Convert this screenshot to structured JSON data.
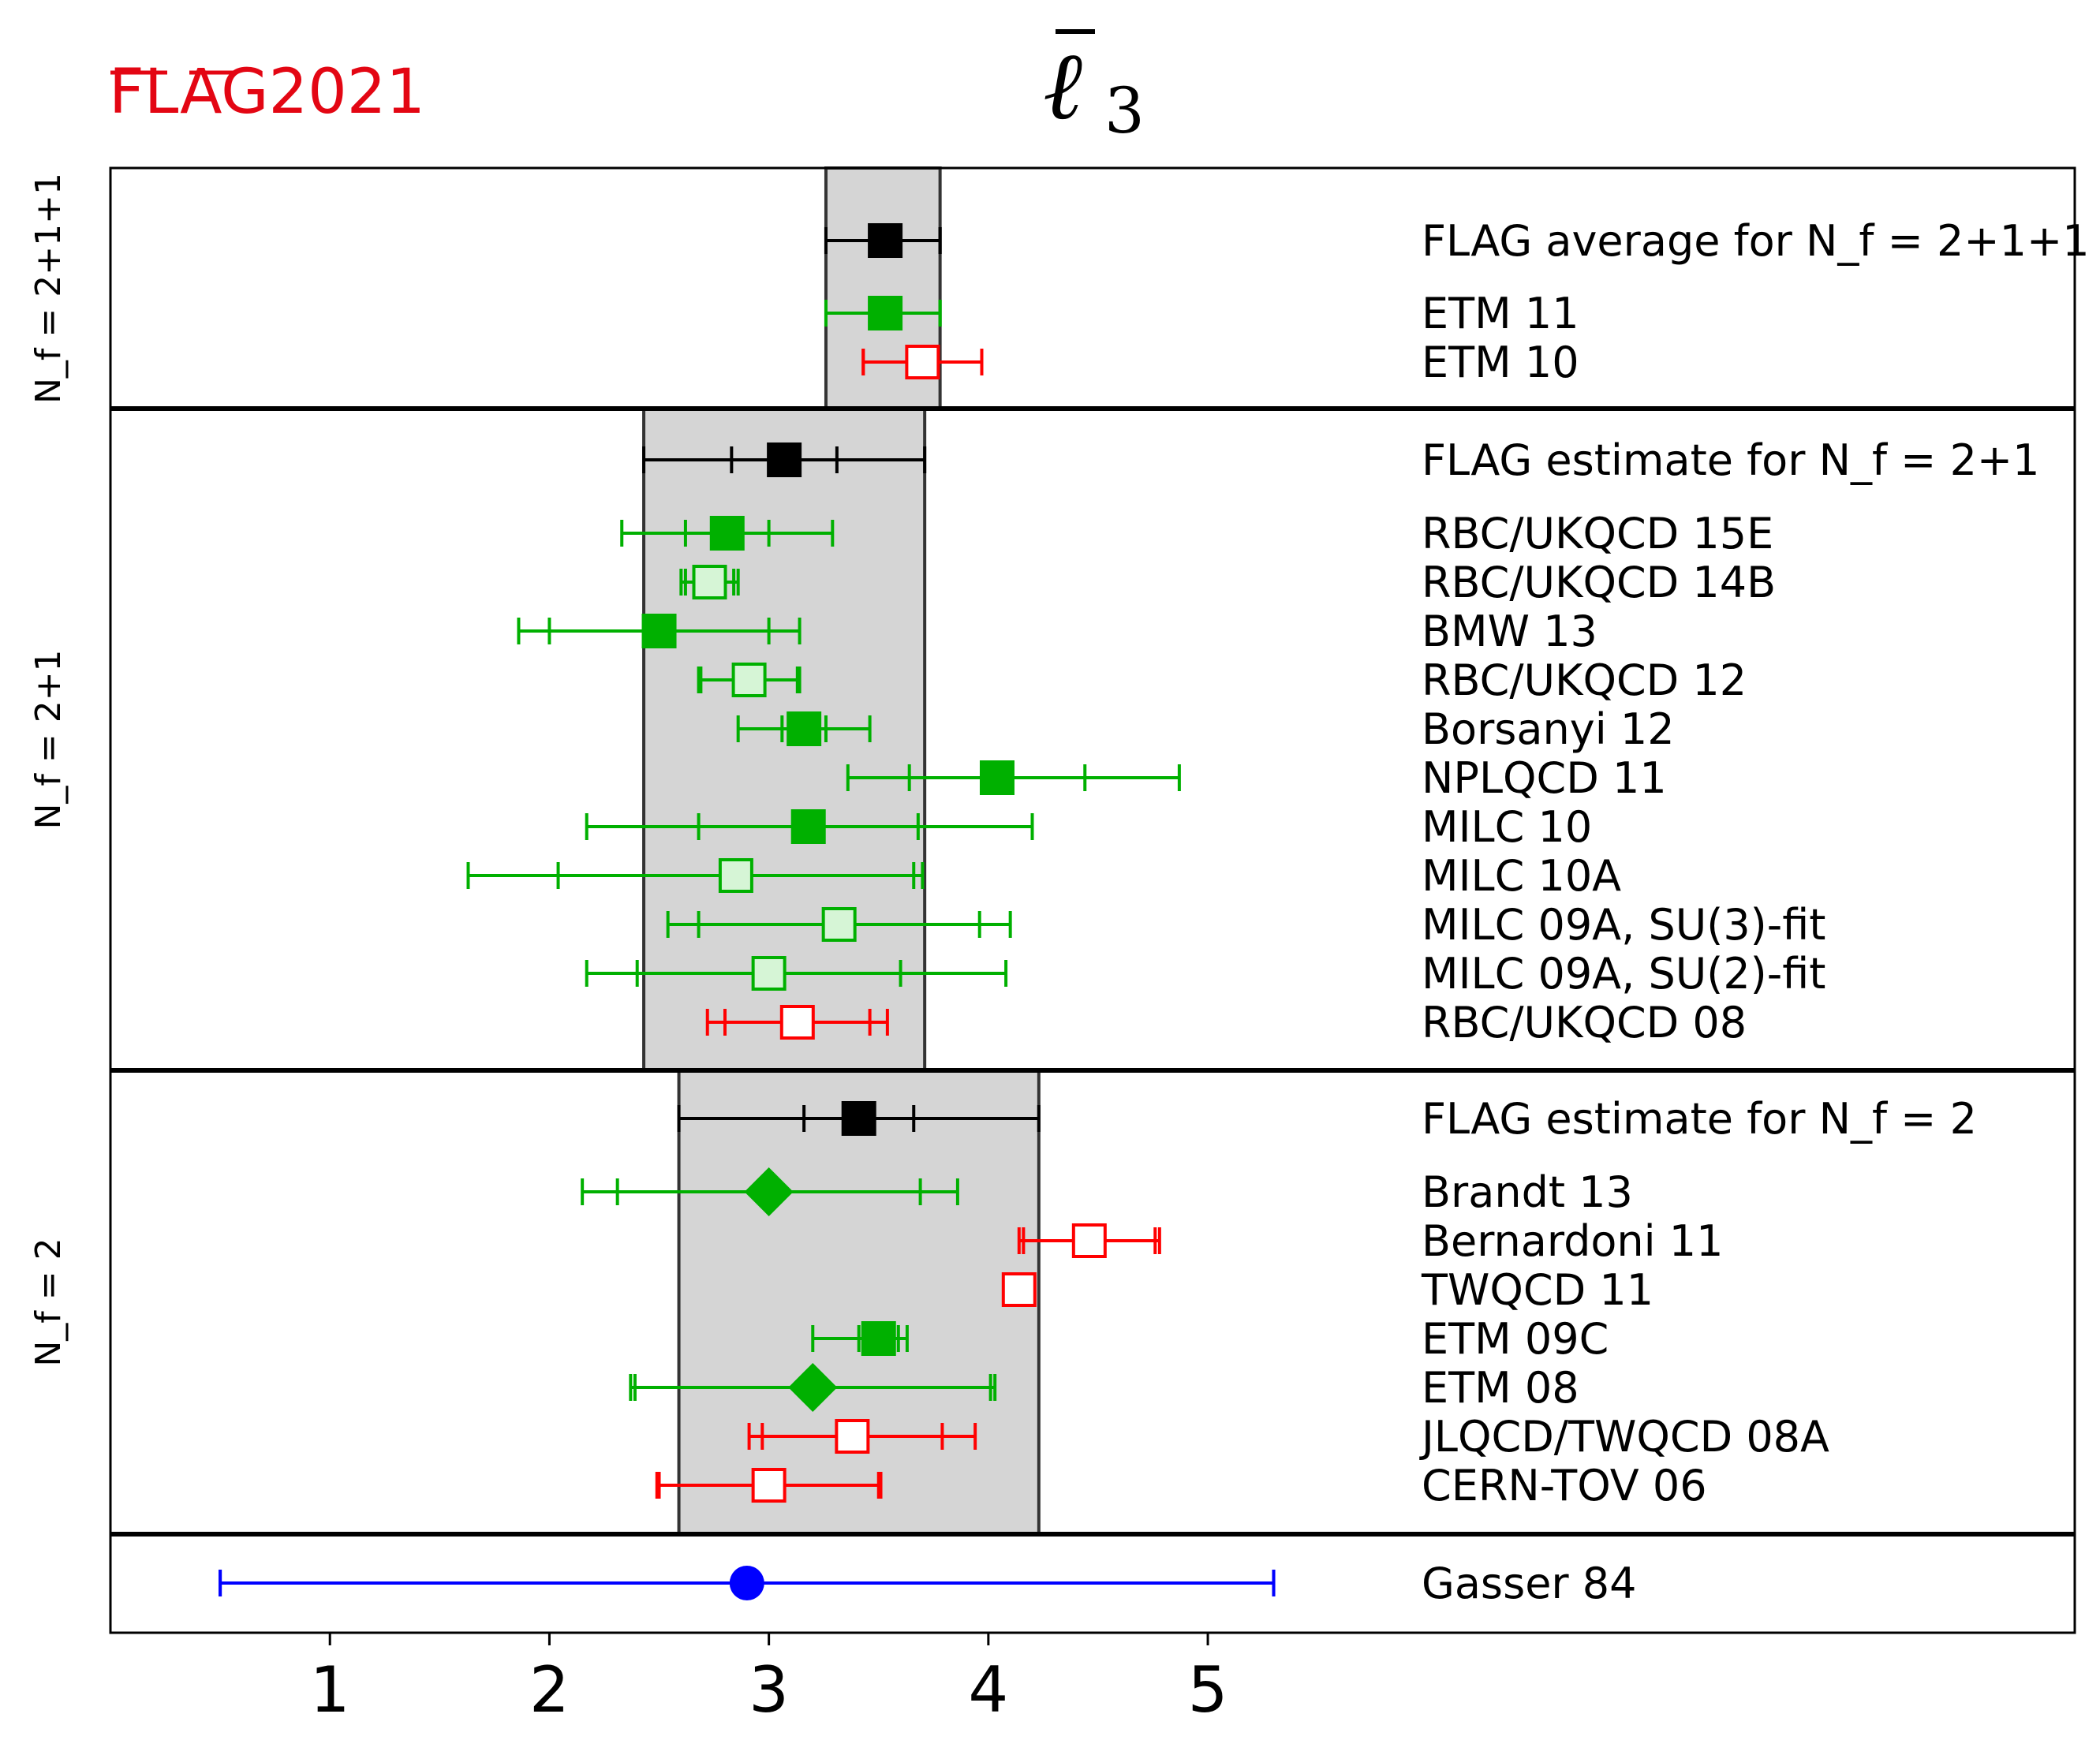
{
  "logo": "FLAG2021",
  "chart_data": {
    "type": "scatter",
    "title": "ℓ̄₃",
    "xlim": [
      0,
      8.95
    ],
    "xticks": [
      1,
      2,
      3,
      4,
      5
    ],
    "grid": false,
    "colors": {
      "flag": "#000000",
      "green": "#00b000",
      "green_light": "#d6f5d6",
      "red": "#ff0000",
      "blue": "#0000ff",
      "band": "#d5d5d5"
    },
    "panels": [
      {
        "label": "N_f = 2+1+1",
        "band": [
          3.26,
          3.78
        ],
        "rows": [
          {
            "name": "FLAG average for N_f = 2+1+1",
            "value": 3.53,
            "err_stat": [
              3.26,
              3.78
            ],
            "err_tot": [
              3.26,
              3.78
            ],
            "color": "flag",
            "marker": "square-filled"
          },
          {
            "name": "ETM 11",
            "value": 3.53,
            "err_stat": [
              3.26,
              3.78
            ],
            "err_tot": [
              3.26,
              3.78
            ],
            "color": "green",
            "marker": "square-filled"
          },
          {
            "name": "ETM 10",
            "value": 3.7,
            "err_stat": [
              3.43,
              3.97
            ],
            "err_tot": [
              3.43,
              3.97
            ],
            "color": "red",
            "marker": "square-open"
          }
        ]
      },
      {
        "label": "N_f = 2+1",
        "band": [
          2.43,
          3.71
        ],
        "rows": [
          {
            "name": "FLAG estimate for N_f = 2+1",
            "value": 3.07,
            "err_stat": [
              2.83,
              3.31
            ],
            "err_tot": [
              2.43,
              3.71
            ],
            "color": "flag",
            "marker": "square-filled"
          },
          {
            "name": "RBC/UKQCD 15E",
            "value": 2.81,
            "err_stat": [
              2.62,
              3.0
            ],
            "err_tot": [
              2.33,
              3.29
            ],
            "color": "green",
            "marker": "square-filled"
          },
          {
            "name": "RBC/UKQCD 14B",
            "value": 2.73,
            "err_stat": [
              2.62,
              2.84
            ],
            "err_tot": [
              2.6,
              2.86
            ],
            "color": "green",
            "marker": "square-light"
          },
          {
            "name": "BMW 13",
            "value": 2.5,
            "err_stat": [
              2.0,
              3.0
            ],
            "err_tot": [
              1.86,
              3.14
            ],
            "color": "green",
            "marker": "square-filled"
          },
          {
            "name": "RBC/UKQCD 12",
            "value": 2.91,
            "err_stat": [
              2.69,
              3.13
            ],
            "err_tot": [
              2.68,
              3.14
            ],
            "color": "green",
            "marker": "square-light"
          },
          {
            "name": "Borsanyi 12",
            "value": 3.16,
            "err_stat": [
              3.06,
              3.26
            ],
            "err_tot": [
              2.86,
              3.46
            ],
            "color": "green",
            "marker": "square-filled"
          },
          {
            "name": "NPLQCD 11",
            "value": 4.04,
            "err_stat": [
              3.64,
              4.44
            ],
            "err_tot": [
              3.36,
              4.87
            ],
            "color": "green",
            "marker": "square-filled"
          },
          {
            "name": "MILC 10",
            "value": 3.18,
            "err_stat": [
              2.68,
              3.68
            ],
            "err_tot": [
              2.17,
              4.2
            ],
            "color": "green",
            "marker": "square-filled"
          },
          {
            "name": "MILC 10A",
            "value": 2.85,
            "err_stat": [
              2.04,
              3.66
            ],
            "err_tot": [
              1.63,
              3.7
            ],
            "color": "green",
            "marker": "square-light"
          },
          {
            "name": "MILC 09A, SU(3)-fit",
            "value": 3.32,
            "err_stat": [
              2.68,
              3.96
            ],
            "err_tot": [
              2.54,
              4.1
            ],
            "color": "green",
            "marker": "square-light"
          },
          {
            "name": "MILC 09A, SU(2)-fit",
            "value": 3.0,
            "err_stat": [
              2.4,
              3.6
            ],
            "err_tot": [
              2.17,
              4.08
            ],
            "color": "green",
            "marker": "square-light"
          },
          {
            "name": "RBC/UKQCD 08",
            "value": 3.13,
            "err_stat": [
              2.8,
              3.46
            ],
            "err_tot": [
              2.72,
              3.54
            ],
            "color": "red",
            "marker": "square-open"
          }
        ]
      },
      {
        "label": "N_f = 2",
        "band": [
          2.59,
          4.23
        ],
        "rows": [
          {
            "name": "FLAG estimate for N_f = 2",
            "value": 3.41,
            "err_stat": [
              3.16,
              3.66
            ],
            "err_tot": [
              2.59,
              4.23
            ],
            "color": "flag",
            "marker": "square-filled"
          },
          {
            "name": "Brandt 13",
            "value": 3.0,
            "err_stat": [
              2.31,
              3.69
            ],
            "err_tot": [
              2.15,
              3.86
            ],
            "color": "green",
            "marker": "diamond-filled"
          },
          {
            "name": "Bernardoni 11",
            "value": 4.46,
            "err_stat": [
              4.16,
              4.76
            ],
            "err_tot": [
              4.14,
              4.78
            ],
            "color": "red",
            "marker": "square-open"
          },
          {
            "name": "TWQCD 11",
            "value": 4.14,
            "err_stat": null,
            "err_tot": null,
            "color": "red",
            "marker": "square-open"
          },
          {
            "name": "ETM 09C",
            "value": 3.5,
            "err_stat": [
              3.41,
              3.59
            ],
            "err_tot": [
              3.2,
              3.63
            ],
            "color": "green",
            "marker": "square-filled"
          },
          {
            "name": "ETM 08",
            "value": 3.2,
            "err_stat": [
              2.39,
              4.01
            ],
            "err_tot": [
              2.37,
              4.03
            ],
            "color": "green",
            "marker": "diamond-filled"
          },
          {
            "name": "JLQCD/TWQCD 08A",
            "value": 3.38,
            "err_stat": [
              2.97,
              3.79
            ],
            "err_tot": [
              2.91,
              3.94
            ],
            "color": "red",
            "marker": "square-open"
          },
          {
            "name": "CERN-TOV 06",
            "value": 3.0,
            "err_stat": [
              2.5,
              3.5
            ],
            "err_tot": [
              2.49,
              3.51
            ],
            "color": "red",
            "marker": "square-open"
          }
        ]
      },
      {
        "label": "",
        "band": null,
        "rows": [
          {
            "name": "Gasser 84",
            "value": 2.9,
            "err_stat": [
              0.5,
              5.3
            ],
            "err_tot": [
              0.5,
              5.3
            ],
            "color": "blue",
            "marker": "circle-filled"
          }
        ]
      }
    ]
  }
}
